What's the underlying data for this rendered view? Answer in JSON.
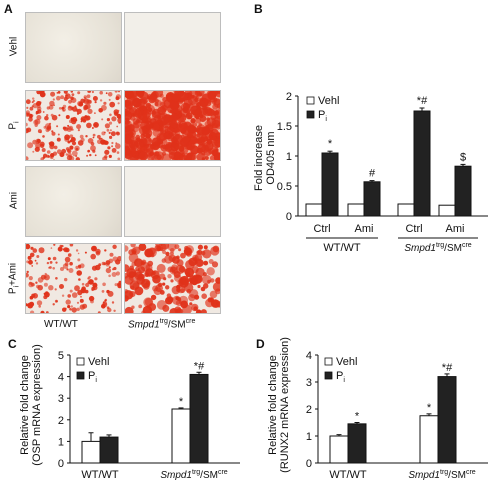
{
  "panel_a": {
    "letter": "A",
    "rows": [
      "Vehl",
      "Pi",
      "Ami",
      "Pi+Ami"
    ],
    "row_subscripts": [
      "",
      "i",
      "",
      "i"
    ],
    "row_bases": [
      "Vehl",
      "P",
      "Ami",
      "P"
    ],
    "row_suffixes": [
      "",
      "",
      "",
      "+Ami"
    ],
    "columns": [
      "WT/WT",
      "Smpd1trg/SMcre"
    ],
    "col2_italic": "Smpd1",
    "col2_sup1": "trg",
    "col2_mid": "/SM",
    "col2_sup2": "cre",
    "tiles": [
      [
        "vehicle",
        "clear"
      ],
      [
        "stained-moderate",
        "stained-dense"
      ],
      [
        "vehicle",
        "clear"
      ],
      [
        "stained-light",
        "stained-blotchy"
      ]
    ],
    "stain_color": "#e0321a"
  },
  "chart_data": [
    {
      "panel": "B",
      "type": "bar",
      "ylabel_line1": "Fold increase",
      "ylabel_line2": "OD405 nm",
      "ylim": [
        0,
        2
      ],
      "yticks": [
        0,
        0.5,
        1,
        1.5,
        2
      ],
      "ytick_labels": [
        "0",
        "0.5",
        "1",
        "1.5",
        "2"
      ],
      "categories": [
        "Ctrl",
        "Ami",
        "Ctrl",
        "Ami"
      ],
      "groups": [
        "WT/WT",
        "Smpd1trg/SMcre"
      ],
      "series": [
        {
          "name": "Vehl",
          "color": "#ffffff",
          "values": [
            0.2,
            0.2,
            0.2,
            0.18
          ],
          "errors": [
            0,
            0,
            0,
            0
          ]
        },
        {
          "name": "Pi",
          "color": "#222222",
          "values": [
            1.05,
            0.57,
            1.75,
            0.83
          ],
          "errors": [
            0.03,
            0.02,
            0.05,
            0.03
          ]
        }
      ],
      "annotations": [
        "*",
        "#",
        "*#",
        "$"
      ],
      "legend": "top-left"
    },
    {
      "panel": "C",
      "type": "bar",
      "ylabel_line1": "Relative fold change",
      "ylabel_line2": "(OSP mRNA expression)",
      "ylim": [
        0,
        5
      ],
      "yticks": [
        0,
        1,
        2,
        3,
        4,
        5
      ],
      "ytick_labels": [
        "0",
        "1",
        "2",
        "3",
        "4",
        "5"
      ],
      "categories": [
        "WT/WT",
        "Smpd1trg/SMcre"
      ],
      "series": [
        {
          "name": "Vehl",
          "color": "#ffffff",
          "values": [
            1.0,
            2.5
          ],
          "errors": [
            0.4,
            0.05
          ]
        },
        {
          "name": "Pi",
          "color": "#222222",
          "values": [
            1.2,
            4.1
          ],
          "errors": [
            0.1,
            0.1
          ]
        }
      ],
      "annotations": [
        [
          "",
          ""
        ],
        [
          "*",
          "*#"
        ]
      ],
      "legend": "top-left"
    },
    {
      "panel": "D",
      "type": "bar",
      "ylabel_line1": "Relative fold change",
      "ylabel_line2": "(RUNX2 mRNA expression)",
      "ylim": [
        0,
        4
      ],
      "yticks": [
        0,
        1,
        2,
        3,
        4
      ],
      "ytick_labels": [
        "0",
        "1",
        "2",
        "3",
        "4"
      ],
      "categories": [
        "WT/WT",
        "Smpd1trg/SMcre"
      ],
      "series": [
        {
          "name": "Vehl",
          "color": "#ffffff",
          "values": [
            1.0,
            1.75
          ],
          "errors": [
            0.05,
            0.07
          ]
        },
        {
          "name": "Pi",
          "color": "#222222",
          "values": [
            1.45,
            3.2
          ],
          "errors": [
            0.05,
            0.1
          ]
        }
      ],
      "annotations": [
        [
          "",
          "*"
        ],
        [
          "*",
          "*#"
        ]
      ],
      "legend": "top-left"
    }
  ],
  "letters": {
    "b": "B",
    "c": "C",
    "d": "D"
  }
}
